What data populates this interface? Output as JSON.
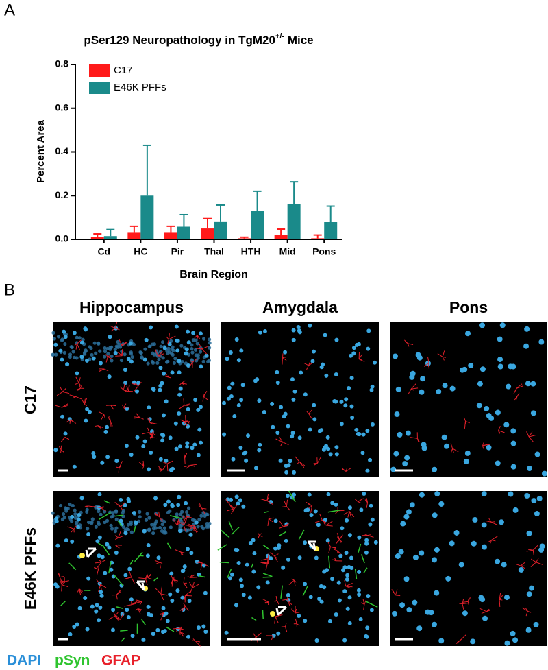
{
  "panel_a_label": "A",
  "panel_b_label": "B",
  "chart_data": {
    "type": "bar",
    "title": "pSer129 Neuropathology in TgM20",
    "title_superscript": "+/-",
    "title_end": " Mice",
    "x_label": "Brain Region",
    "y_label": "Percent Area",
    "categories": [
      "Cd",
      "HC",
      "Pir",
      "Thal",
      "HTH",
      "Mid",
      "Pons"
    ],
    "series": [
      {
        "name": "C17",
        "color": "#ff1a1a",
        "values": [
          0.01,
          0.03,
          0.03,
          0.05,
          0.005,
          0.02,
          0.005
        ],
        "errors": [
          0.015,
          0.03,
          0.03,
          0.045,
          0.005,
          0.027,
          0.015
        ]
      },
      {
        "name": "E46K PFFs",
        "color": "#1a8a8a",
        "values": [
          0.015,
          0.2,
          0.058,
          0.082,
          0.13,
          0.163,
          0.08
        ],
        "errors": [
          0.03,
          0.23,
          0.055,
          0.075,
          0.09,
          0.1,
          0.072
        ]
      }
    ],
    "ylim": [
      0,
      0.8
    ],
    "yticks": [
      {
        "value": 0,
        "label": "0.0"
      },
      0.2,
      0.4,
      0.6,
      0.8
    ],
    "legend": "upper-left"
  },
  "panel_b": {
    "columns": [
      "Hippocampus",
      "Amygdala",
      "Pons"
    ],
    "rows": [
      "C17",
      "E46K PFFs"
    ],
    "stain_legend": [
      "DAPI",
      "pSyn",
      "GFAP"
    ]
  }
}
